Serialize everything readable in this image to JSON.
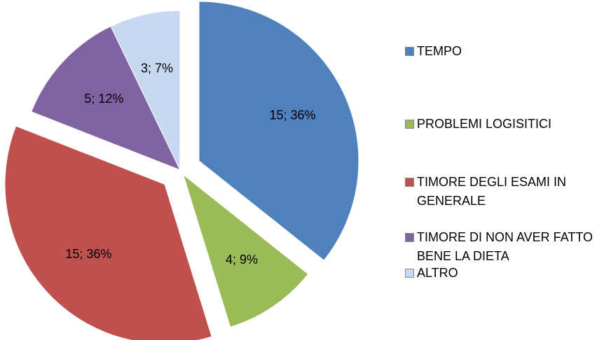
{
  "chart_data": {
    "type": "pie",
    "categories": [
      "TEMPO",
      "PROBLEMI LOGISITICI",
      "TIMORE DEGLI ESAMI IN GENERALE",
      "TIMORE DI NON AVER FATTO BENE LA DIETA",
      "ALTRO"
    ],
    "values": [
      15,
      4,
      15,
      5,
      3
    ],
    "value_labels": [
      "15; 36%",
      "4; 9%",
      "15; 36%",
      "5; 12%",
      "3; 7%"
    ],
    "colors": [
      "#4f81bd",
      "#9bbb59",
      "#c0504d",
      "#8064a2",
      "#c6d9f1"
    ],
    "legend": "right"
  }
}
